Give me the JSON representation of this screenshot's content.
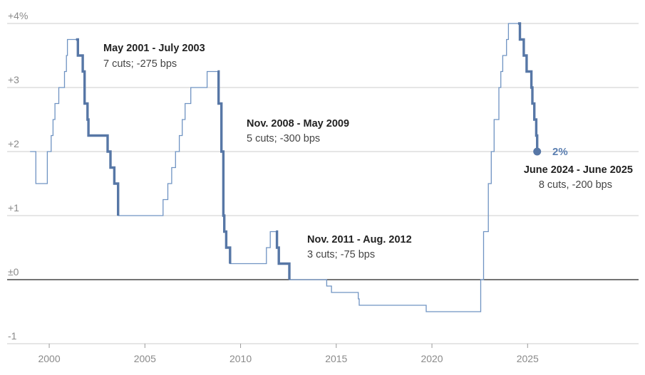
{
  "colors": {
    "thin_line": "#6f93c2",
    "thick_line": "#5777a6",
    "grid": "#cccccc",
    "zero_line": "#222222",
    "tick_text": "#8a8a8a"
  },
  "chart_data": {
    "type": "line",
    "title": "",
    "xlabel": "",
    "ylabel": "",
    "xlim": [
      1997.8,
      2030.8
    ],
    "ylim": [
      -1,
      4
    ],
    "x_ticks": [
      2000,
      2005,
      2010,
      2015,
      2020,
      2025
    ],
    "x_tick_labels": [
      "2000",
      "2005",
      "2010",
      "2015",
      "2020",
      "2025"
    ],
    "y_ticks": [
      4,
      3,
      2,
      1,
      0,
      -1
    ],
    "y_tick_labels": [
      "+4%",
      "+3",
      "+2",
      "+1",
      "±0",
      "-1"
    ],
    "grid": true,
    "series": [
      {
        "name": "",
        "step": true,
        "points": [
          [
            1999.0,
            2.0
          ],
          [
            1999.3,
            1.5
          ],
          [
            1999.9,
            2.0
          ],
          [
            2000.1,
            2.25
          ],
          [
            2000.2,
            2.5
          ],
          [
            2000.3,
            2.75
          ],
          [
            2000.5,
            3.0
          ],
          [
            2000.8,
            3.25
          ],
          [
            2000.9,
            3.5
          ],
          [
            2000.95,
            3.75
          ],
          [
            2001.4,
            3.75
          ],
          [
            2001.5,
            3.5
          ],
          [
            2001.75,
            3.25
          ],
          [
            2001.85,
            2.75
          ],
          [
            2002.0,
            2.5
          ],
          [
            2002.05,
            2.25
          ],
          [
            2003.05,
            2.0
          ],
          [
            2003.2,
            1.75
          ],
          [
            2003.4,
            1.5
          ],
          [
            2003.6,
            1.0
          ],
          [
            2005.95,
            1.25
          ],
          [
            2006.2,
            1.5
          ],
          [
            2006.4,
            1.75
          ],
          [
            2006.6,
            2.0
          ],
          [
            2006.8,
            2.25
          ],
          [
            2006.95,
            2.5
          ],
          [
            2007.1,
            2.75
          ],
          [
            2007.4,
            3.0
          ],
          [
            2008.25,
            3.25
          ],
          [
            2008.5,
            3.25
          ],
          [
            2008.8,
            3.25
          ],
          [
            2008.85,
            2.75
          ],
          [
            2009.0,
            2.0
          ],
          [
            2009.1,
            1.0
          ],
          [
            2009.15,
            0.75
          ],
          [
            2009.25,
            0.5
          ],
          [
            2009.45,
            0.25
          ],
          [
            2011.35,
            0.5
          ],
          [
            2011.55,
            0.75
          ],
          [
            2011.85,
            0.75
          ],
          [
            2011.9,
            0.5
          ],
          [
            2012.0,
            0.25
          ],
          [
            2012.55,
            0.0
          ],
          [
            2014.5,
            -0.1
          ],
          [
            2014.75,
            -0.2
          ],
          [
            2016.15,
            -0.3
          ],
          [
            2016.2,
            -0.4
          ],
          [
            2019.7,
            -0.5
          ],
          [
            2022.55,
            0.0
          ],
          [
            2022.7,
            0.75
          ],
          [
            2022.95,
            1.5
          ],
          [
            2023.1,
            2.0
          ],
          [
            2023.25,
            2.5
          ],
          [
            2023.5,
            3.0
          ],
          [
            2023.6,
            3.25
          ],
          [
            2023.7,
            3.5
          ],
          [
            2023.9,
            3.75
          ],
          [
            2024.0,
            4.0
          ],
          [
            2024.5,
            4.0
          ],
          [
            2024.6,
            3.75
          ],
          [
            2024.8,
            3.5
          ],
          [
            2024.95,
            3.25
          ],
          [
            2025.2,
            3.0
          ],
          [
            2025.25,
            2.75
          ],
          [
            2025.35,
            2.5
          ],
          [
            2025.45,
            2.25
          ],
          [
            2025.5,
            2.0
          ]
        ]
      }
    ],
    "highlight_periods": [
      {
        "start": 2001.4,
        "end": 2003.6,
        "title": "May 2001 - July 2003",
        "subtitle": "7 cuts; -275 bps"
      },
      {
        "start": 2008.8,
        "end": 2009.45,
        "title": "Nov. 2008 - May 2009",
        "subtitle": "5 cuts; -300 bps"
      },
      {
        "start": 2011.85,
        "end": 2012.55,
        "title": "Nov. 2011 - Aug. 2012",
        "subtitle": "3 cuts; -75 bps"
      },
      {
        "start": 2024.5,
        "end": 2025.5,
        "title": "June 2024 - June 2025",
        "subtitle": "8 cuts, -200 bps"
      }
    ],
    "end_point": {
      "x": 2025.5,
      "y": 2.0,
      "label": "2%"
    }
  }
}
